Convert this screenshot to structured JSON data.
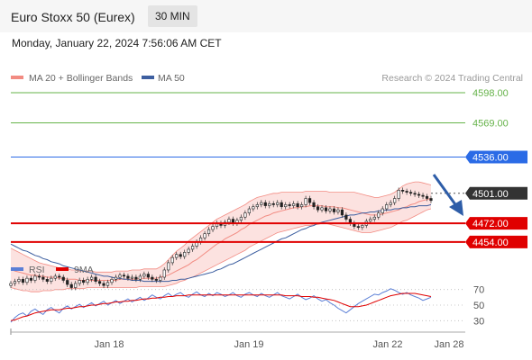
{
  "header": {
    "title": "Euro Stoxx 50 (Eurex)",
    "interval": "30 MIN",
    "timestamp": "Monday, January 22, 2024 7:56:06 AM CET"
  },
  "legend": {
    "bollinger": "MA 20 + Bollinger Bands",
    "ma50": "MA 50",
    "credit": "Research © 2024 Trading Central",
    "rsi": "RSI",
    "ma9": "9MA"
  },
  "colors": {
    "bollinger": "#f28b82",
    "ma50": "#3d5fa0",
    "resistance": "#66b34a",
    "pivot": "#2b6be6",
    "support": "#e00000",
    "current": "#333333",
    "rsi": "#5b7fd6",
    "ma9": "#e00000",
    "arrow": "#2e5da8"
  },
  "chart_data": [
    {
      "type": "candlestick",
      "ylim": [
        4440,
        4605
      ],
      "x_ticks": [
        "Jan 18",
        "Jan 19",
        "Jan 22",
        "Jan 28"
      ],
      "levels": [
        {
          "value": 4598.0,
          "label": "4598.00",
          "kind": "resistance"
        },
        {
          "value": 4569.0,
          "label": "4569.00",
          "kind": "resistance"
        },
        {
          "value": 4536.0,
          "label": "4536.00",
          "kind": "pivot"
        },
        {
          "value": 4501.0,
          "label": "4501.00",
          "kind": "current"
        },
        {
          "value": 4472.0,
          "label": "4472.00",
          "kind": "support"
        },
        {
          "value": 4454.0,
          "label": "4454.00",
          "kind": "support"
        }
      ],
      "close": [
        4414,
        4416,
        4418,
        4415,
        4419,
        4417,
        4421,
        4420,
        4418,
        4416,
        4419,
        4421,
        4420,
        4417,
        4413,
        4410,
        4414,
        4417,
        4415,
        4418,
        4420,
        4416,
        4414,
        4412,
        4415,
        4418,
        4420,
        4422,
        4421,
        4419,
        4420,
        4418,
        4421,
        4423,
        4420,
        4418,
        4417,
        4420,
        4427,
        4434,
        4439,
        4442,
        4440,
        4444,
        4447,
        4450,
        4454,
        4458,
        4462,
        4466,
        4469,
        4472,
        4470,
        4473,
        4476,
        4472,
        4475,
        4478,
        4482,
        4486,
        4488,
        4490,
        4492,
        4489,
        4491,
        4490,
        4492,
        4488,
        4490,
        4489,
        4491,
        4488,
        4490,
        4496,
        4492,
        4488,
        4485,
        4487,
        4484,
        4486,
        4483,
        4485,
        4480,
        4476,
        4472,
        4469,
        4468,
        4470,
        4474,
        4476,
        4478,
        4482,
        4486,
        4490,
        4492,
        4496,
        4504,
        4503,
        4502,
        4501,
        4500,
        4499,
        4498,
        4496,
        4494
      ],
      "ma20": [
        4428,
        4426,
        4425,
        4424,
        4423,
        4422,
        4422,
        4421,
        4421,
        4420,
        4420,
        4420,
        4419,
        4419,
        4418,
        4418,
        4418,
        4417,
        4417,
        4417,
        4417,
        4417,
        4417,
        4417,
        4417,
        4417,
        4417,
        4418,
        4418,
        4418,
        4418,
        4418,
        4419,
        4419,
        4419,
        4419,
        4419,
        4420,
        4421,
        4422,
        4424,
        4426,
        4428,
        4430,
        4432,
        4435,
        4437,
        4440,
        4443,
        4446,
        4449,
        4452,
        4454,
        4457,
        4459,
        4461,
        4463,
        4466,
        4468,
        4471,
        4473,
        4475,
        4477,
        4479,
        4480,
        4482,
        4483,
        4484,
        4485,
        4486,
        4487,
        4487,
        4488,
        4488,
        4489,
        4489,
        4489,
        4489,
        4488,
        4488,
        4488,
        4487,
        4487,
        4486,
        4485,
        4484,
        4483,
        4482,
        4481,
        4480,
        4480,
        4480,
        4481,
        4482,
        4483,
        4484,
        4485,
        4487,
        4488,
        4490,
        4491,
        4493,
        4494,
        4495,
        4496
      ],
      "bb_upper": [
        4448,
        4446,
        4444,
        4442,
        4440,
        4438,
        4436,
        4434,
        4433,
        4432,
        4431,
        4430,
        4429,
        4428,
        4428,
        4427,
        4427,
        4426,
        4426,
        4426,
        4426,
        4425,
        4425,
        4425,
        4425,
        4425,
        4426,
        4426,
        4426,
        4426,
        4427,
        4427,
        4427,
        4428,
        4428,
        4428,
        4428,
        4430,
        4433,
        4437,
        4441,
        4445,
        4448,
        4451,
        4455,
        4458,
        4461,
        4464,
        4467,
        4470,
        4473,
        4476,
        4478,
        4480,
        4482,
        4484,
        4486,
        4488,
        4490,
        4493,
        4495,
        4497,
        4498,
        4499,
        4500,
        4501,
        4501,
        4502,
        4502,
        4502,
        4502,
        4502,
        4502,
        4503,
        4503,
        4503,
        4503,
        4503,
        4503,
        4502,
        4502,
        4502,
        4502,
        4502,
        4502,
        4502,
        4501,
        4500,
        4499,
        4498,
        4497,
        4497,
        4498,
        4499,
        4500,
        4502,
        4505,
        4508,
        4510,
        4511,
        4512,
        4512,
        4511,
        4510,
        4509
      ],
      "bb_lower": [
        4410,
        4409,
        4408,
        4407,
        4407,
        4406,
        4406,
        4406,
        4407,
        4407,
        4407,
        4408,
        4408,
        4408,
        4409,
        4409,
        4409,
        4409,
        4409,
        4410,
        4410,
        4410,
        4410,
        4410,
        4410,
        4410,
        4410,
        4410,
        4410,
        4410,
        4410,
        4410,
        4411,
        4411,
        4411,
        4411,
        4411,
        4411,
        4411,
        4412,
        4413,
        4414,
        4416,
        4417,
        4419,
        4420,
        4422,
        4424,
        4426,
        4428,
        4430,
        4432,
        4434,
        4436,
        4438,
        4440,
        4442,
        4444,
        4446,
        4449,
        4451,
        4453,
        4455,
        4457,
        4459,
        4461,
        4463,
        4464,
        4465,
        4466,
        4467,
        4468,
        4469,
        4470,
        4470,
        4471,
        4471,
        4472,
        4472,
        4471,
        4470,
        4469,
        4468,
        4467,
        4466,
        4465,
        4464,
        4463,
        4463,
        4463,
        4464,
        4465,
        4466,
        4467,
        4468,
        4470,
        4472,
        4474,
        4475,
        4477,
        4479,
        4481,
        4483,
        4485,
        4486
      ],
      "ma50": [
        4452,
        4450,
        4448,
        4446,
        4445,
        4443,
        4441,
        4440,
        4438,
        4437,
        4435,
        4434,
        4433,
        4431,
        4430,
        4429,
        4428,
        4427,
        4426,
        4425,
        4424,
        4423,
        4422,
        4421,
        4421,
        4420,
        4419,
        4419,
        4418,
        4418,
        4417,
        4417,
        4417,
        4416,
        4416,
        4416,
        4416,
        4416,
        4416,
        4416,
        4417,
        4417,
        4418,
        4418,
        4419,
        4420,
        4421,
        4422,
        4423,
        4424,
        4425,
        4427,
        4428,
        4430,
        4432,
        4433,
        4435,
        4437,
        4439,
        4441,
        4443,
        4445,
        4447,
        4449,
        4451,
        4453,
        4455,
        4457,
        4458,
        4460,
        4462,
        4464,
        4466,
        4467,
        4469,
        4470,
        4472,
        4473,
        4474,
        4475,
        4476,
        4477,
        4478,
        4479,
        4480,
        4480,
        4481,
        4482,
        4482,
        4483,
        4483,
        4484,
        4484,
        4485,
        4485,
        4486,
        4486,
        4487,
        4487,
        4488,
        4488,
        4489,
        4489,
        4489,
        4490
      ]
    },
    {
      "type": "line",
      "ylim": [
        20,
        80
      ],
      "y_ticks": [
        70,
        50,
        30
      ],
      "rsi": [
        28,
        34,
        38,
        40,
        36,
        42,
        45,
        41,
        38,
        44,
        47,
        43,
        40,
        46,
        49,
        45,
        48,
        51,
        47,
        50,
        53,
        49,
        52,
        55,
        50,
        53,
        56,
        52,
        55,
        58,
        54,
        57,
        60,
        56,
        59,
        63,
        60,
        58,
        62,
        65,
        61,
        64,
        66,
        62,
        60,
        64,
        67,
        63,
        61,
        65,
        62,
        66,
        64,
        61,
        63,
        66,
        62,
        60,
        64,
        66,
        63,
        61,
        65,
        62,
        60,
        63,
        66,
        62,
        60,
        58,
        61,
        64,
        60,
        57,
        59,
        62,
        58,
        55,
        57,
        53,
        50,
        46,
        43,
        40,
        44,
        48,
        52,
        55,
        58,
        61,
        64,
        63,
        66,
        68,
        71,
        69,
        66,
        64,
        66,
        63,
        61,
        59,
        56,
        58,
        60
      ],
      "ma9": [
        30,
        31,
        33,
        35,
        36,
        38,
        40,
        41,
        42,
        43,
        44,
        44,
        44,
        45,
        46,
        46,
        47,
        48,
        48,
        49,
        50,
        50,
        51,
        52,
        52,
        53,
        54,
        54,
        55,
        55,
        56,
        56,
        57,
        58,
        58,
        59,
        59,
        60,
        60,
        61,
        61,
        62,
        62,
        62,
        63,
        63,
        63,
        63,
        63,
        63,
        63,
        63,
        63,
        63,
        63,
        63,
        63,
        63,
        63,
        63,
        63,
        63,
        63,
        63,
        63,
        63,
        63,
        63,
        62,
        62,
        62,
        62,
        61,
        61,
        61,
        60,
        60,
        59,
        58,
        57,
        56,
        54,
        52,
        50,
        48,
        48,
        48,
        49,
        50,
        52,
        54,
        56,
        58,
        60,
        62,
        63,
        64,
        65,
        65,
        65,
        65,
        64,
        63,
        62,
        61
      ]
    }
  ]
}
